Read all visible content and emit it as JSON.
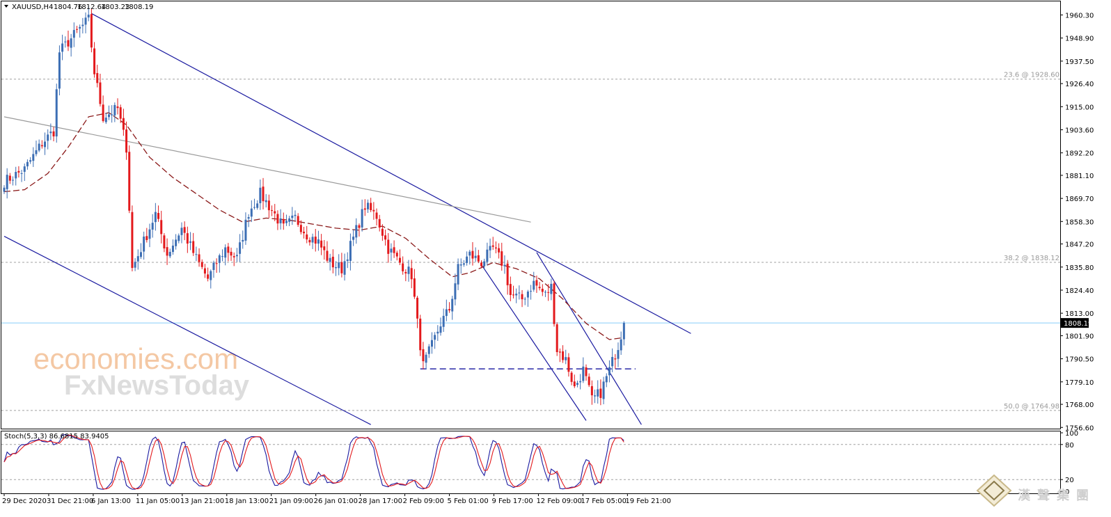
{
  "chart_data": {
    "type": "candlestick",
    "symbol_header": "XAUUSD,H4",
    "ohlc_header": {
      "open": "1804.76",
      "high": "1812.64",
      "low": "1803.23",
      "close": "1808.19"
    },
    "current_price_label": "1808.19",
    "current_price": 1808.19,
    "y_range": [
      1756.0,
      1967.0
    ],
    "y_ticks": [
      "1960.30",
      "1948.90",
      "1937.50",
      "1926.40",
      "1915.00",
      "1903.60",
      "1892.20",
      "1881.10",
      "1869.70",
      "1858.30",
      "1847.20",
      "1835.80",
      "1824.40",
      "1813.00",
      "1801.90",
      "1790.50",
      "1779.10",
      "1768.00",
      "1756.60"
    ],
    "x_ticks": [
      "29 Dec 2020",
      "31 Dec 21:00",
      "6 Jan 13:00",
      "11 Jan 05:00",
      "13 Jan 21:00",
      "18 Jan 13:00",
      "21 Jan 09:00",
      "26 Jan 01:00",
      "28 Jan 17:00",
      "2 Feb 09:00",
      "5 Feb 01:00",
      "9 Feb 17:00",
      "12 Feb 09:00",
      "17 Feb 05:00",
      "19 Feb 21:00"
    ],
    "fib_levels": [
      {
        "label": "23.6 @ 1928.60",
        "value": 1928.6
      },
      {
        "label": "38.2 @ 1838.12",
        "value": 1838.12
      },
      {
        "label": "50.0 @ 1764.98",
        "value": 1764.98
      }
    ],
    "key_points": [
      {
        "bar": 0,
        "price": 1878
      },
      {
        "bar": 7,
        "price": 1884
      },
      {
        "bar": 13,
        "price": 1897
      },
      {
        "bar": 17,
        "price": 1903
      },
      {
        "bar": 19,
        "price": 1942
      },
      {
        "bar": 25,
        "price": 1952
      },
      {
        "bar": 29,
        "price": 1958
      },
      {
        "bar": 31,
        "price": 1932
      },
      {
        "bar": 34,
        "price": 1910
      },
      {
        "bar": 39,
        "price": 1914
      },
      {
        "bar": 42,
        "price": 1895
      },
      {
        "bar": 44,
        "price": 1835
      },
      {
        "bar": 47,
        "price": 1845
      },
      {
        "bar": 52,
        "price": 1862
      },
      {
        "bar": 56,
        "price": 1842
      },
      {
        "bar": 61,
        "price": 1855
      },
      {
        "bar": 66,
        "price": 1840
      },
      {
        "bar": 70,
        "price": 1830
      },
      {
        "bar": 73,
        "price": 1838
      },
      {
        "bar": 76,
        "price": 1845
      },
      {
        "bar": 80,
        "price": 1840
      },
      {
        "bar": 84,
        "price": 1863
      },
      {
        "bar": 88,
        "price": 1872
      },
      {
        "bar": 92,
        "price": 1864
      },
      {
        "bar": 96,
        "price": 1855
      },
      {
        "bar": 100,
        "price": 1860
      },
      {
        "bar": 104,
        "price": 1852
      },
      {
        "bar": 108,
        "price": 1848
      },
      {
        "bar": 112,
        "price": 1838
      },
      {
        "bar": 116,
        "price": 1835
      },
      {
        "bar": 120,
        "price": 1850
      },
      {
        "bar": 124,
        "price": 1866
      },
      {
        "bar": 128,
        "price": 1861
      },
      {
        "bar": 132,
        "price": 1845
      },
      {
        "bar": 136,
        "price": 1838
      },
      {
        "bar": 140,
        "price": 1832
      },
      {
        "bar": 142,
        "price": 1808
      },
      {
        "bar": 144,
        "price": 1787
      },
      {
        "bar": 147,
        "price": 1797
      },
      {
        "bar": 150,
        "price": 1808
      },
      {
        "bar": 153,
        "price": 1815
      },
      {
        "bar": 156,
        "price": 1835
      },
      {
        "bar": 160,
        "price": 1842
      },
      {
        "bar": 164,
        "price": 1838
      },
      {
        "bar": 168,
        "price": 1845
      },
      {
        "bar": 172,
        "price": 1836
      },
      {
        "bar": 174,
        "price": 1822
      },
      {
        "bar": 178,
        "price": 1820
      },
      {
        "bar": 182,
        "price": 1828
      },
      {
        "bar": 186,
        "price": 1822
      },
      {
        "bar": 188,
        "price": 1826
      },
      {
        "bar": 190,
        "price": 1795
      },
      {
        "bar": 193,
        "price": 1790
      },
      {
        "bar": 196,
        "price": 1776
      },
      {
        "bar": 199,
        "price": 1785
      },
      {
        "bar": 202,
        "price": 1770
      },
      {
        "bar": 205,
        "price": 1774
      },
      {
        "bar": 208,
        "price": 1785
      },
      {
        "bar": 211,
        "price": 1797
      },
      {
        "bar": 213,
        "price": 1808.19
      }
    ],
    "ma_points": [
      {
        "bar": 0,
        "price": 1873
      },
      {
        "bar": 7,
        "price": 1874
      },
      {
        "bar": 15,
        "price": 1882
      },
      {
        "bar": 22,
        "price": 1895
      },
      {
        "bar": 29,
        "price": 1910
      },
      {
        "bar": 36,
        "price": 1912
      },
      {
        "bar": 42,
        "price": 1906
      },
      {
        "bar": 50,
        "price": 1890
      },
      {
        "bar": 58,
        "price": 1880
      },
      {
        "bar": 66,
        "price": 1872
      },
      {
        "bar": 74,
        "price": 1864
      },
      {
        "bar": 82,
        "price": 1858
      },
      {
        "bar": 90,
        "price": 1860
      },
      {
        "bar": 98,
        "price": 1859
      },
      {
        "bar": 106,
        "price": 1857
      },
      {
        "bar": 114,
        "price": 1855
      },
      {
        "bar": 122,
        "price": 1854
      },
      {
        "bar": 130,
        "price": 1856
      },
      {
        "bar": 138,
        "price": 1850
      },
      {
        "bar": 146,
        "price": 1840
      },
      {
        "bar": 154,
        "price": 1831
      },
      {
        "bar": 160,
        "price": 1833
      },
      {
        "bar": 168,
        "price": 1838
      },
      {
        "bar": 176,
        "price": 1835
      },
      {
        "bar": 184,
        "price": 1830
      },
      {
        "bar": 192,
        "price": 1820
      },
      {
        "bar": 200,
        "price": 1808
      },
      {
        "bar": 208,
        "price": 1800
      },
      {
        "bar": 213,
        "price": 1801
      }
    ],
    "trend_lines": [
      {
        "name": "channel-top",
        "from": {
          "bar": 30,
          "price": 1961
        },
        "to": {
          "bar": 236,
          "price": 1803
        },
        "color": "#1a1aa0"
      },
      {
        "name": "channel-bottom",
        "from": {
          "bar": 0,
          "price": 1851
        },
        "to": {
          "bar": 126,
          "price": 1758
        },
        "color": "#1a1aa0"
      },
      {
        "name": "grey-trend",
        "from": {
          "bar": 0,
          "price": 1910
        },
        "to": {
          "bar": 181,
          "price": 1858
        },
        "color": "#9a9a9a"
      },
      {
        "name": "small-channel-upper",
        "from": {
          "bar": 183,
          "price": 1843
        },
        "to": {
          "bar": 219,
          "price": 1758
        },
        "color": "#1a1aa0"
      },
      {
        "name": "small-channel-lower",
        "from": {
          "bar": 164,
          "price": 1837
        },
        "to": {
          "bar": 200,
          "price": 1760
        },
        "color": "#1a1aa0"
      }
    ],
    "dashed_support": {
      "from_bar": 143,
      "to_bar": 217,
      "price": 1785.5,
      "color": "#2a2aa8"
    },
    "stochastic": {
      "label": "Stoch(5,3,3) 86.6815 83.9405",
      "k": 86.6815,
      "d": 83.9405,
      "range": [
        0,
        100
      ],
      "levels": [
        20,
        80
      ],
      "ticks": [
        "100",
        "80",
        "20",
        "0"
      ]
    },
    "colors": {
      "bull": "#3c6eb4",
      "bear": "#e3191c",
      "ma": "#8b1a1a",
      "stoch_k": "#1a1aa0",
      "stoch_d": "#e3191c",
      "price_line": "#87cefa"
    },
    "grid": false,
    "watermarks": [
      "economies.com",
      "FxNewsToday",
      "漢聲集團"
    ]
  }
}
